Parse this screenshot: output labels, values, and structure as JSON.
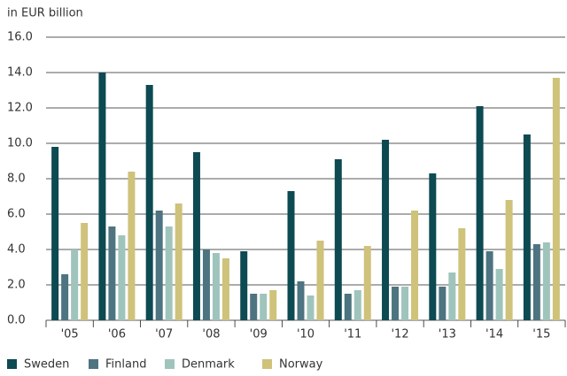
{
  "chart_data": {
    "type": "bar",
    "y_axis_label": "in EUR billion",
    "categories": [
      "'05",
      "'06",
      "'07",
      "'08",
      "'09",
      "'10",
      "'11",
      "'12",
      "'13",
      "'14",
      "'15"
    ],
    "series": [
      {
        "name": "Sweden",
        "color": "#0d4a52",
        "values": [
          9.8,
          14.0,
          13.3,
          9.5,
          3.9,
          7.3,
          9.1,
          10.2,
          8.3,
          12.1,
          10.5
        ]
      },
      {
        "name": "Finland",
        "color": "#4d7480",
        "values": [
          2.6,
          5.3,
          6.2,
          4.0,
          1.5,
          2.2,
          1.5,
          1.9,
          1.9,
          3.9,
          4.3
        ]
      },
      {
        "name": "Denmark",
        "color": "#9fc4bc",
        "values": [
          4.0,
          4.8,
          5.3,
          3.8,
          1.5,
          1.4,
          1.7,
          1.9,
          2.7,
          2.9,
          4.4
        ]
      },
      {
        "name": "Norway",
        "color": "#cfc27a",
        "values": [
          5.5,
          8.4,
          6.6,
          3.5,
          1.7,
          4.5,
          4.2,
          6.2,
          5.2,
          6.8,
          13.7
        ]
      }
    ],
    "ylim": [
      0,
      16
    ],
    "yticks": [
      {
        "value": 0,
        "label": "0.0"
      },
      {
        "value": 2,
        "label": "2.0"
      },
      {
        "value": 4,
        "label": "4.0"
      },
      {
        "value": 6,
        "label": "6.0"
      },
      {
        "value": 8,
        "label": "8.0"
      },
      {
        "value": 10,
        "label": "10.0"
      },
      {
        "value": 12,
        "label": "12.0"
      },
      {
        "value": 14,
        "label": "14.0"
      },
      {
        "value": 16,
        "label": "16.0"
      }
    ],
    "grid": true,
    "legend": "bottom"
  }
}
